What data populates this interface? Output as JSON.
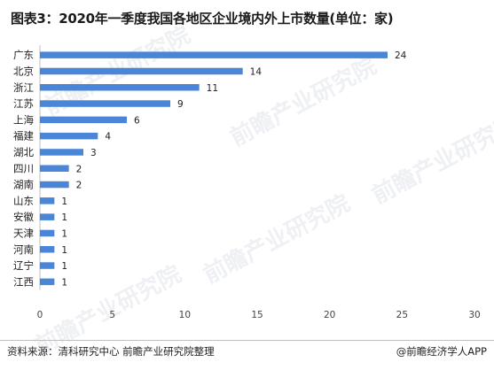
{
  "title": "图表3：2020年一季度我国各地区企业境内外上市数量(单位：家)",
  "source": "资料来源：清科研究中心 前瞻产业研究院整理",
  "credit": "@前瞻经济学人APP",
  "watermark": "前瞻产业研究院",
  "colors": {
    "bar": "#4a86d8",
    "axis": "#bfbfbf",
    "text": "#222222"
  },
  "chart_data": {
    "type": "bar",
    "orientation": "horizontal",
    "categories": [
      "广东",
      "北京",
      "浙江",
      "江苏",
      "上海",
      "福建",
      "湖北",
      "四川",
      "湖南",
      "山东",
      "安徽",
      "天津",
      "河南",
      "辽宁",
      "江西"
    ],
    "values": [
      24,
      14,
      11,
      9,
      6,
      4,
      3,
      2,
      2,
      1,
      1,
      1,
      1,
      1,
      1
    ],
    "xlim": [
      0,
      30
    ],
    "xticks": [
      0,
      5,
      10,
      15,
      20,
      25,
      30
    ],
    "grid": false,
    "data_labels": true
  }
}
